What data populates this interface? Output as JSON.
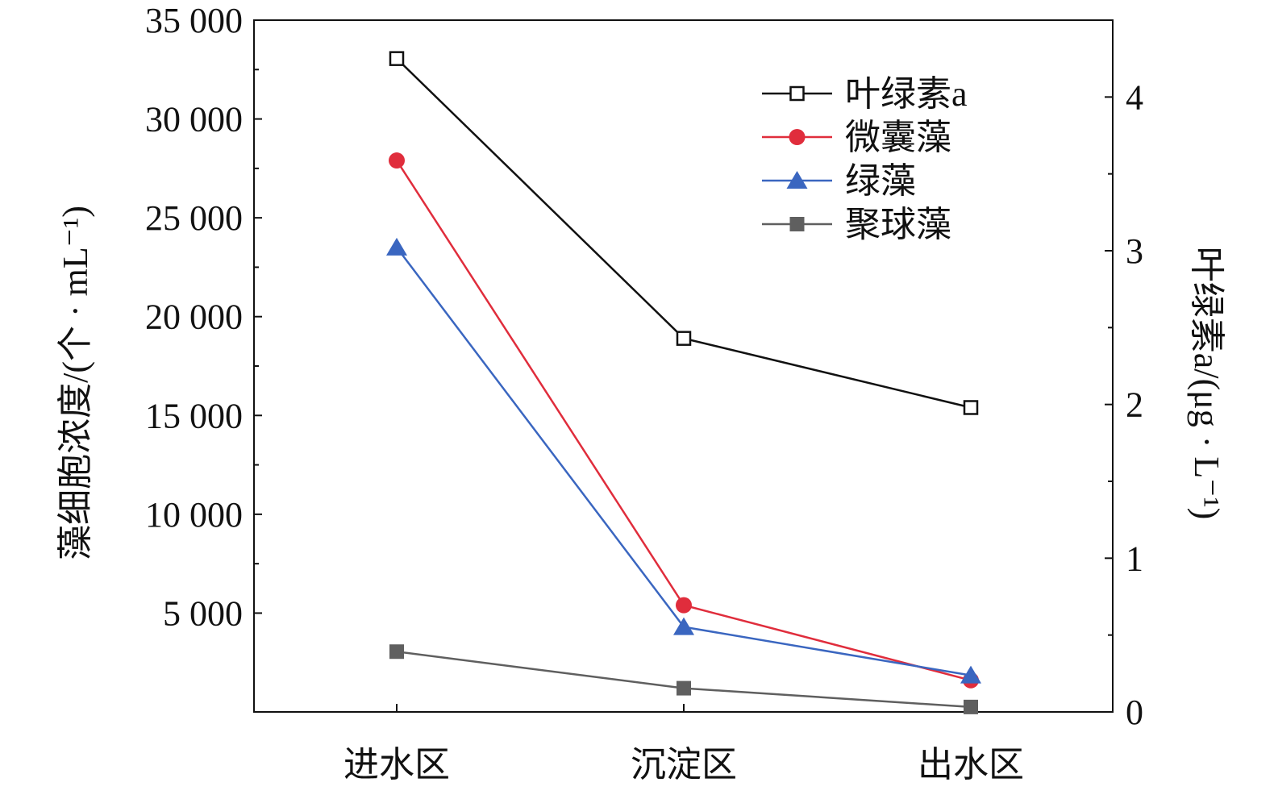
{
  "chart_data": {
    "type": "line",
    "categories": [
      "进水区",
      "沉淀区",
      "出水区"
    ],
    "y_left": {
      "label": "藻细胞浓度/(个 · mL⁻¹)",
      "range": [
        0,
        35000
      ],
      "ticks": [
        5000,
        10000,
        15000,
        20000,
        25000,
        30000,
        35000
      ],
      "tick_labels": [
        "5 000",
        "10 000",
        "15 000",
        "20 000",
        "25 000",
        "30 000",
        "35 000"
      ]
    },
    "y_right": {
      "label": "叶绿素a/(μg · L⁻¹)",
      "range": [
        0,
        4.5
      ],
      "ticks": [
        0,
        1,
        2,
        3,
        4
      ],
      "tick_labels": [
        "0",
        "1",
        "2",
        "3",
        "4"
      ]
    },
    "series": [
      {
        "name": "叶绿素a",
        "axis": "right",
        "marker": "open-square",
        "color": "#111111",
        "values": [
          4.25,
          2.43,
          1.98
        ]
      },
      {
        "name": "微囊藻",
        "axis": "left",
        "marker": "circle",
        "color": "#e02d3c",
        "values": [
          27900,
          5400,
          1600
        ]
      },
      {
        "name": "绿藻",
        "axis": "left",
        "marker": "triangle",
        "color": "#3a66c0",
        "values": [
          23500,
          4300,
          1850
        ]
      },
      {
        "name": "聚球藻",
        "axis": "left",
        "marker": "filled-square",
        "color": "#5f5f5f",
        "values": [
          3050,
          1200,
          250
        ]
      }
    ],
    "legend_position": "top-right",
    "grid": false
  }
}
